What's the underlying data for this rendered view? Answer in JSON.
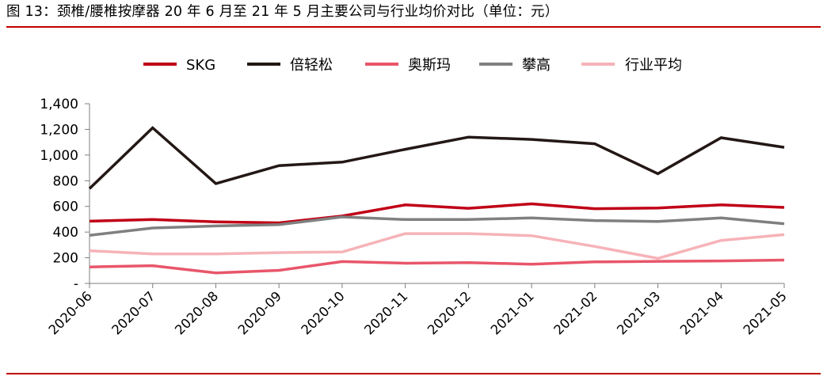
{
  "figure": {
    "title": "图 13：颈椎/腰椎按摩器 20 年 6 月至 21 年 5 月主要公司与行业均价对比（单位：元）"
  },
  "chart_data": {
    "type": "line",
    "title": "",
    "xlabel": "",
    "ylabel": "",
    "x": [
      "2020-06",
      "2020-07",
      "2020-08",
      "2020-09",
      "2020-10",
      "2020-11",
      "2020-12",
      "2021-01",
      "2021-02",
      "2021-03",
      "2021-04",
      "2021-05"
    ],
    "ylim": [
      0,
      1400
    ],
    "yticks": [
      {
        "value": 0,
        "label": "-"
      },
      {
        "value": 200,
        "label": "200"
      },
      {
        "value": 400,
        "label": "400"
      },
      {
        "value": 600,
        "label": "600"
      },
      {
        "value": 800,
        "label": "800"
      },
      {
        "value": 1000,
        "label": "1,000"
      },
      {
        "value": 1200,
        "label": "1,200"
      },
      {
        "value": 1400,
        "label": "1,400"
      }
    ],
    "grid": false,
    "legend_position": "top",
    "series": [
      {
        "name": "SKG",
        "color": "#c00016",
        "values": [
          485,
          498,
          480,
          472,
          525,
          612,
          585,
          620,
          582,
          588,
          612,
          592
        ]
      },
      {
        "name": "倍轻松",
        "color": "#231815",
        "values": [
          738,
          1212,
          778,
          918,
          945,
          1045,
          1140,
          1122,
          1088,
          855,
          1135,
          1060
        ]
      },
      {
        "name": "奥斯玛",
        "color": "#e8566a",
        "values": [
          128,
          138,
          82,
          102,
          170,
          157,
          162,
          150,
          168,
          172,
          175,
          182
        ]
      },
      {
        "name": "攀高",
        "color": "#808080",
        "values": [
          375,
          432,
          448,
          458,
          518,
          498,
          498,
          510,
          490,
          482,
          510,
          465
        ]
      },
      {
        "name": "行业平均",
        "color": "#f6b3b8",
        "values": [
          255,
          230,
          230,
          240,
          245,
          388,
          388,
          372,
          288,
          195,
          335,
          380
        ]
      }
    ]
  }
}
